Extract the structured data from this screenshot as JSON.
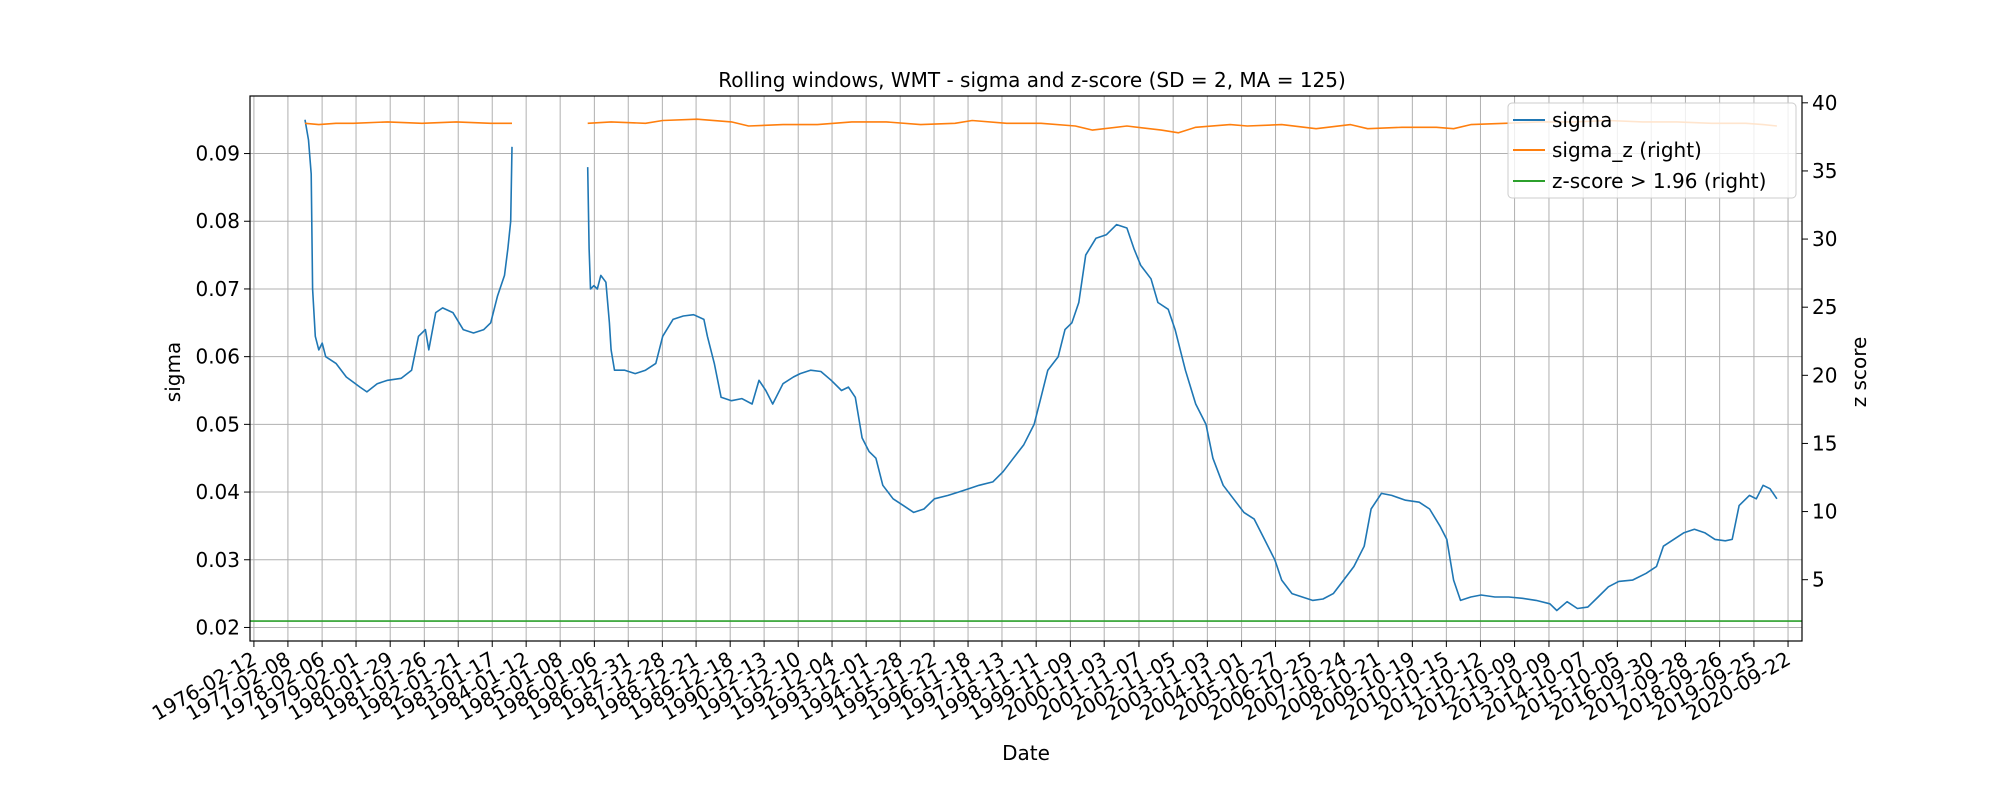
{
  "chart_data": {
    "type": "line",
    "title": "Rolling windows, WMT - sigma and z-score (SD = 2, MA = 125)",
    "xlabel": "Date",
    "ylabel": "sigma",
    "ylabel_right": "z score",
    "ylim": [
      0.018,
      0.0985
    ],
    "ylim_right": [
      0.5,
      40.5
    ],
    "yticks": [
      0.02,
      0.03,
      0.04,
      0.05,
      0.06,
      0.07,
      0.08,
      0.09
    ],
    "yticks_right": [
      5,
      10,
      15,
      20,
      25,
      30,
      35,
      40
    ],
    "xlim": [
      1976.0,
      2021.13
    ],
    "grid": true,
    "legend_position": "top-right",
    "x_tick_labels": [
      "1976-02-12",
      "1977-02-08",
      "1978-02-06",
      "1979-02-01",
      "1980-01-29",
      "1981-01-26",
      "1982-01-21",
      "1983-01-17",
      "1984-01-12",
      "1985-01-08",
      "1986-01-06",
      "1986-12-31",
      "1987-12-28",
      "1988-12-21",
      "1989-12-18",
      "1990-12-13",
      "1991-12-10",
      "1992-12-04",
      "1993-12-01",
      "1994-11-28",
      "1995-11-22",
      "1996-11-18",
      "1997-11-13",
      "1998-11-11",
      "1999-11-09",
      "2000-11-03",
      "2001-11-07",
      "2002-11-05",
      "2003-11-03",
      "2004-11-01",
      "2005-10-27",
      "2006-10-25",
      "2007-10-24",
      "2008-10-21",
      "2009-10-19",
      "2010-10-15",
      "2011-10-12",
      "2012-10-09",
      "2013-10-09",
      "2014-10-07",
      "2015-10-05",
      "2016-09-30",
      "2017-09-28",
      "2018-09-26",
      "2019-09-25",
      "2020-09-22"
    ],
    "series": [
      {
        "name": "sigma",
        "color": "#1f77b4",
        "axis": "left",
        "segments": [
          [
            [
              1977.6,
              0.095
            ],
            [
              1977.7,
              0.092
            ],
            [
              1977.78,
              0.087
            ],
            [
              1977.82,
              0.07
            ],
            [
              1977.9,
              0.063
            ],
            [
              1978.0,
              0.061
            ],
            [
              1978.1,
              0.062
            ],
            [
              1978.2,
              0.06
            ],
            [
              1978.5,
              0.059
            ],
            [
              1978.8,
              0.057
            ],
            [
              1979.2,
              0.0555
            ],
            [
              1979.4,
              0.0548
            ],
            [
              1979.7,
              0.056
            ],
            [
              1980.0,
              0.0565
            ],
            [
              1980.4,
              0.0568
            ],
            [
              1980.7,
              0.058
            ],
            [
              1980.9,
              0.063
            ],
            [
              1981.1,
              0.064
            ],
            [
              1981.2,
              0.061
            ],
            [
              1981.4,
              0.0665
            ],
            [
              1981.6,
              0.0672
            ],
            [
              1981.9,
              0.0665
            ],
            [
              1982.2,
              0.064
            ],
            [
              1982.5,
              0.0635
            ],
            [
              1982.8,
              0.064
            ],
            [
              1983.0,
              0.065
            ],
            [
              1983.2,
              0.069
            ],
            [
              1983.4,
              0.072
            ],
            [
              1983.5,
              0.076
            ],
            [
              1983.58,
              0.08
            ],
            [
              1983.62,
              0.091
            ]
          ],
          [
            [
              1985.82,
              0.088
            ],
            [
              1985.86,
              0.076
            ],
            [
              1985.9,
              0.07
            ],
            [
              1986.0,
              0.0705
            ],
            [
              1986.1,
              0.07
            ],
            [
              1986.2,
              0.072
            ],
            [
              1986.35,
              0.071
            ],
            [
              1986.45,
              0.065
            ],
            [
              1986.5,
              0.061
            ],
            [
              1986.6,
              0.058
            ],
            [
              1986.9,
              0.058
            ],
            [
              1987.2,
              0.0575
            ],
            [
              1987.5,
              0.058
            ],
            [
              1987.8,
              0.059
            ],
            [
              1988.0,
              0.063
            ],
            [
              1988.3,
              0.0655
            ],
            [
              1988.6,
              0.066
            ],
            [
              1988.9,
              0.0662
            ],
            [
              1989.2,
              0.0655
            ],
            [
              1989.3,
              0.063
            ],
            [
              1989.5,
              0.059
            ],
            [
              1989.7,
              0.054
            ],
            [
              1990.0,
              0.0535
            ],
            [
              1990.3,
              0.0538
            ],
            [
              1990.6,
              0.053
            ],
            [
              1990.8,
              0.0565
            ],
            [
              1991.0,
              0.055
            ],
            [
              1991.2,
              0.053
            ],
            [
              1991.5,
              0.056
            ],
            [
              1991.8,
              0.057
            ],
            [
              1992.0,
              0.0575
            ],
            [
              1992.3,
              0.058
            ],
            [
              1992.6,
              0.0578
            ],
            [
              1992.9,
              0.0565
            ],
            [
              1993.2,
              0.055
            ],
            [
              1993.4,
              0.0555
            ],
            [
              1993.6,
              0.054
            ],
            [
              1993.8,
              0.048
            ],
            [
              1994.0,
              0.046
            ],
            [
              1994.2,
              0.045
            ],
            [
              1994.4,
              0.041
            ],
            [
              1994.7,
              0.039
            ],
            [
              1995.0,
              0.038
            ],
            [
              1995.3,
              0.037
            ],
            [
              1995.6,
              0.0375
            ],
            [
              1995.9,
              0.039
            ],
            [
              1996.3,
              0.0395
            ],
            [
              1996.6,
              0.04
            ],
            [
              1996.9,
              0.0405
            ],
            [
              1997.2,
              0.041
            ],
            [
              1997.6,
              0.0415
            ],
            [
              1997.9,
              0.043
            ],
            [
              1998.2,
              0.045
            ],
            [
              1998.5,
              0.047
            ],
            [
              1998.8,
              0.05
            ],
            [
              1999.0,
              0.054
            ],
            [
              1999.2,
              0.058
            ],
            [
              1999.5,
              0.06
            ],
            [
              1999.7,
              0.064
            ],
            [
              1999.9,
              0.065
            ],
            [
              2000.1,
              0.068
            ],
            [
              2000.3,
              0.075
            ],
            [
              2000.6,
              0.0775
            ],
            [
              2000.9,
              0.078
            ],
            [
              2001.2,
              0.0795
            ],
            [
              2001.5,
              0.079
            ],
            [
              2001.7,
              0.076
            ],
            [
              2001.9,
              0.0735
            ],
            [
              2002.2,
              0.0715
            ],
            [
              2002.4,
              0.068
            ],
            [
              2002.7,
              0.067
            ],
            [
              2002.9,
              0.064
            ],
            [
              2003.2,
              0.058
            ],
            [
              2003.5,
              0.053
            ],
            [
              2003.8,
              0.05
            ],
            [
              2004.0,
              0.045
            ],
            [
              2004.3,
              0.041
            ],
            [
              2004.6,
              0.039
            ],
            [
              2004.9,
              0.037
            ],
            [
              2005.2,
              0.036
            ],
            [
              2005.5,
              0.033
            ],
            [
              2005.8,
              0.03
            ],
            [
              2006.0,
              0.027
            ],
            [
              2006.3,
              0.025
            ],
            [
              2006.6,
              0.0245
            ],
            [
              2006.9,
              0.024
            ],
            [
              2007.2,
              0.0242
            ],
            [
              2007.5,
              0.025
            ],
            [
              2007.8,
              0.027
            ],
            [
              2008.1,
              0.029
            ],
            [
              2008.4,
              0.032
            ],
            [
              2008.6,
              0.0375
            ],
            [
              2008.9,
              0.0398
            ],
            [
              2009.2,
              0.0395
            ],
            [
              2009.6,
              0.0388
            ],
            [
              2010.0,
              0.0385
            ],
            [
              2010.3,
              0.0375
            ],
            [
              2010.6,
              0.035
            ],
            [
              2010.8,
              0.033
            ],
            [
              2011.0,
              0.027
            ],
            [
              2011.2,
              0.024
            ],
            [
              2011.5,
              0.0245
            ],
            [
              2011.8,
              0.0248
            ],
            [
              2012.2,
              0.0245
            ],
            [
              2012.6,
              0.0245
            ],
            [
              2013.0,
              0.0243
            ],
            [
              2013.4,
              0.024
            ],
            [
              2013.8,
              0.0235
            ],
            [
              2014.0,
              0.0225
            ],
            [
              2014.3,
              0.0238
            ],
            [
              2014.6,
              0.0228
            ],
            [
              2014.9,
              0.023
            ],
            [
              2015.2,
              0.0245
            ],
            [
              2015.5,
              0.026
            ],
            [
              2015.8,
              0.0268
            ],
            [
              2016.2,
              0.027
            ],
            [
              2016.6,
              0.028
            ],
            [
              2016.9,
              0.029
            ],
            [
              2017.1,
              0.032
            ],
            [
              2017.4,
              0.033
            ],
            [
              2017.7,
              0.034
            ],
            [
              2018.0,
              0.0345
            ],
            [
              2018.3,
              0.034
            ],
            [
              2018.6,
              0.033
            ],
            [
              2018.9,
              0.0328
            ],
            [
              2019.1,
              0.033
            ],
            [
              2019.3,
              0.038
            ],
            [
              2019.6,
              0.0395
            ],
            [
              2019.8,
              0.039
            ],
            [
              2020.0,
              0.041
            ],
            [
              2020.2,
              0.0405
            ],
            [
              2020.4,
              0.039
            ]
          ]
        ]
      },
      {
        "name": "sigma_z (right)",
        "color": "#ff7f0e",
        "axis": "right",
        "segments": [
          [
            [
              1977.6,
              38.5
            ],
            [
              1978.0,
              38.4
            ],
            [
              1978.5,
              38.5
            ],
            [
              1979.0,
              38.5
            ],
            [
              1980.0,
              38.6
            ],
            [
              1981.0,
              38.5
            ],
            [
              1982.0,
              38.6
            ],
            [
              1983.0,
              38.5
            ],
            [
              1983.62,
              38.5
            ]
          ],
          [
            [
              1985.82,
              38.5
            ],
            [
              1986.5,
              38.6
            ],
            [
              1987.5,
              38.5
            ],
            [
              1988.0,
              38.7
            ],
            [
              1989.0,
              38.8
            ],
            [
              1990.0,
              38.6
            ],
            [
              1990.5,
              38.3
            ],
            [
              1991.5,
              38.4
            ],
            [
              1992.5,
              38.4
            ],
            [
              1993.5,
              38.6
            ],
            [
              1994.5,
              38.6
            ],
            [
              1995.5,
              38.4
            ],
            [
              1996.5,
              38.5
            ],
            [
              1997.0,
              38.7
            ],
            [
              1998.0,
              38.5
            ],
            [
              1999.0,
              38.5
            ],
            [
              2000.0,
              38.3
            ],
            [
              2000.5,
              38.0
            ],
            [
              2001.5,
              38.3
            ],
            [
              2002.5,
              38.0
            ],
            [
              2003.0,
              37.8
            ],
            [
              2003.5,
              38.2
            ],
            [
              2004.5,
              38.4
            ],
            [
              2005.0,
              38.3
            ],
            [
              2006.0,
              38.4
            ],
            [
              2007.0,
              38.1
            ],
            [
              2008.0,
              38.4
            ],
            [
              2008.5,
              38.1
            ],
            [
              2009.5,
              38.2
            ],
            [
              2010.5,
              38.2
            ],
            [
              2011.0,
              38.1
            ],
            [
              2011.5,
              38.4
            ],
            [
              2012.5,
              38.5
            ],
            [
              2013.5,
              38.6
            ],
            [
              2014.5,
              38.6
            ],
            [
              2015.5,
              38.7
            ],
            [
              2016.5,
              38.6
            ],
            [
              2017.5,
              38.6
            ],
            [
              2018.5,
              38.5
            ],
            [
              2019.5,
              38.5
            ],
            [
              2020.0,
              38.4
            ],
            [
              2020.4,
              38.3
            ]
          ]
        ]
      },
      {
        "name": "z-score > 1.96 (right)",
        "color": "#2ca02c",
        "axis": "right",
        "segments": [
          [
            [
              1976.0,
              1.96
            ],
            [
              2021.13,
              1.96
            ]
          ]
        ]
      }
    ]
  }
}
